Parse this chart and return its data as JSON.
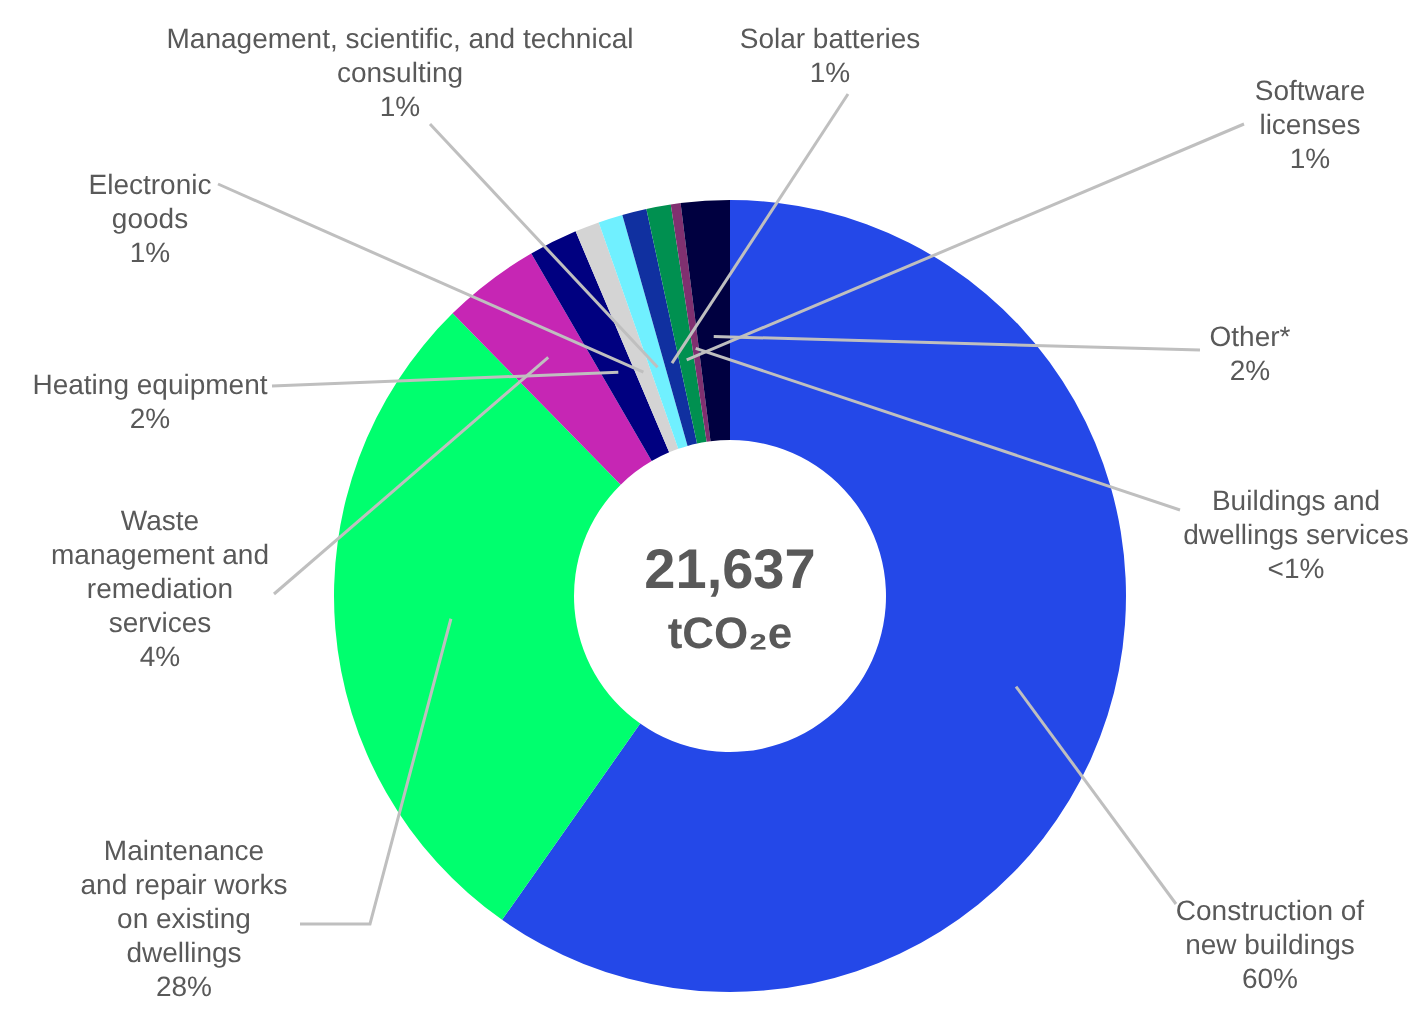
{
  "chart_data": {
    "type": "donut",
    "categories": [
      "Construction of new buildings",
      "Maintenance and repair works on existing dwellings",
      "Waste management and remediation services",
      "Heating equipment",
      "Electronic goods",
      "Management, scientific, and technical consulting",
      "Solar batteries",
      "Software licenses",
      "Buildings and dwellings services",
      "Other*"
    ],
    "values": [
      60,
      28,
      4,
      2,
      1,
      1,
      1,
      1,
      0.4,
      2
    ],
    "value_labels": [
      "60%",
      "28%",
      "4%",
      "2%",
      "1%",
      "1%",
      "1%",
      "1%",
      "<1%",
      "2%"
    ],
    "colors": [
      "#2448e8",
      "#00ff6e",
      "#c626b4",
      "#000080",
      "#d4d4d4",
      "#70f0ff",
      "#1030a0",
      "#009050",
      "#803070",
      "#000040"
    ],
    "annotations": [
      "21,637",
      "tCO₂e"
    ]
  }
}
